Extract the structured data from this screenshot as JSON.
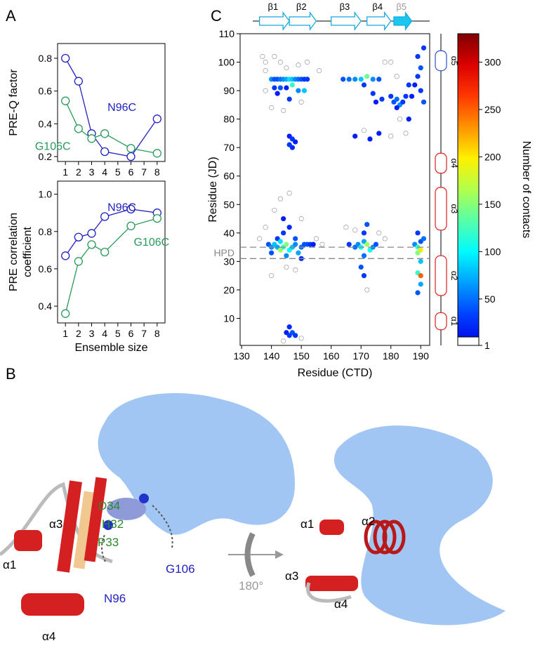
{
  "figure": {
    "panel_labels": [
      "A",
      "B",
      "C"
    ],
    "panel_b": {
      "left": [
        "D34",
        "H32",
        "P33",
        "α3",
        "α1",
        "N96",
        "G106",
        "α4"
      ],
      "rotation": "180°",
      "right": [
        "α2",
        "α1",
        "α3",
        "α4"
      ]
    }
  },
  "chart_data": [
    {
      "type": "line",
      "ylabel": [
        "PRE-Q factor"
      ],
      "x": [
        1,
        2,
        3,
        4,
        6,
        8
      ],
      "xlim": [
        0.4,
        8.6
      ],
      "xticks": [
        1,
        2,
        3,
        4,
        5,
        6,
        7,
        8
      ],
      "ylim": [
        0.17,
        0.89
      ],
      "yticks": [
        0.2,
        0.4,
        0.6,
        0.8
      ],
      "series": [
        {
          "name": "N96C",
          "color": "#2222c4",
          "values": [
            0.8,
            0.66,
            0.34,
            0.23,
            0.2,
            0.43
          ]
        },
        {
          "name": "G106C",
          "color": "#2a9a5a",
          "values": [
            0.54,
            0.37,
            0.31,
            0.34,
            0.25,
            0.22
          ]
        }
      ]
    },
    {
      "type": "line",
      "ylabel": [
        "PRE correlation",
        "coefficient"
      ],
      "xlabel": "Ensemble size",
      "x": [
        1,
        2,
        3,
        4,
        6,
        8
      ],
      "xlim": [
        0.4,
        8.6
      ],
      "xticks": [
        1,
        2,
        3,
        4,
        5,
        6,
        7,
        8
      ],
      "ylim": [
        0.31,
        1.07
      ],
      "yticks": [
        0.4,
        0.6,
        0.8,
        {
          "value": 1,
          "label": "1.0"
        }
      ],
      "series": [
        {
          "name": "N96C",
          "color": "#2222c4",
          "values": [
            0.67,
            0.77,
            0.79,
            0.88,
            0.92,
            0.9
          ]
        },
        {
          "name": "G106C",
          "color": "#2a9a5a",
          "values": [
            0.36,
            0.64,
            0.73,
            0.69,
            0.83,
            0.87
          ]
        }
      ]
    },
    {
      "type": "scatter",
      "xlabel": "Residue (CTD)",
      "ylabel": "Residue (JD)",
      "colorbar_label": "Number of contacts",
      "xlim": [
        129.5,
        193
      ],
      "xticks": [
        130,
        140,
        150,
        160,
        170,
        180,
        190
      ],
      "ylim": [
        0.5,
        110
      ],
      "yticks": [
        10,
        20,
        30,
        40,
        50,
        60,
        70,
        80,
        90,
        100,
        110
      ],
      "clim": [
        1,
        330
      ],
      "cticks": [
        1,
        50,
        100,
        150,
        200,
        250,
        300
      ],
      "hpd": {
        "label": "HPD",
        "lines": [
          31,
          35
        ]
      },
      "strands": [
        {
          "label": "β1",
          "start": 136,
          "end": 146
        },
        {
          "label": "β2",
          "start": 146,
          "end": 155
        },
        {
          "label": "β3",
          "start": 160,
          "end": 170
        },
        {
          "label": "β4",
          "start": 172,
          "end": 180
        },
        {
          "label": "β5",
          "start": 181,
          "end": 187
        }
      ],
      "helices": [
        {
          "label": "α1",
          "start": 6,
          "end": 12
        },
        {
          "label": "α2",
          "start": 18,
          "end": 32
        },
        {
          "label": "α3",
          "start": 41,
          "end": 56
        },
        {
          "label": "α4",
          "start": 61,
          "end": 68
        },
        {
          "label": "α5",
          "start": 97,
          "end": 104
        }
      ],
      "points": {
        "x": [
          140,
          141,
          142,
          143,
          144,
          145,
          146,
          147,
          148,
          149,
          150,
          151,
          152,
          141,
          143,
          145,
          147,
          149,
          151,
          142,
          146,
          146,
          147,
          148,
          147,
          146,
          139,
          140,
          141,
          142,
          143,
          144,
          145,
          146,
          147,
          148,
          149,
          150,
          151,
          152,
          153,
          154,
          142,
          144,
          146,
          144,
          148,
          140,
          145,
          150,
          143,
          145,
          146,
          147,
          148,
          146,
          166,
          168,
          169,
          170,
          171,
          172,
          173,
          174,
          175,
          171,
          172,
          171,
          170,
          171,
          164,
          166,
          168,
          170,
          172,
          174,
          176,
          171,
          174,
          175,
          177,
          173,
          168,
          176,
          180,
          181,
          182,
          183,
          184,
          182,
          185,
          186,
          187,
          186,
          188,
          189,
          190,
          189,
          190,
          189,
          190,
          190,
          189,
          190,
          189,
          191,
          190,
          189,
          191,
          190,
          191,
          189,
          188
        ],
        "y": [
          94,
          94,
          94,
          94,
          94,
          94,
          94,
          94,
          94,
          94,
          94,
          94,
          94,
          91,
          91,
          91,
          92,
          90,
          90,
          89,
          87,
          74,
          73,
          72,
          70,
          71,
          36,
          35,
          36,
          35,
          34,
          35,
          36,
          34,
          35,
          36,
          33,
          35,
          36,
          36,
          36,
          36,
          38,
          40,
          42,
          45,
          38,
          33,
          32,
          31,
          37,
          5,
          4,
          5,
          4,
          7,
          36,
          35,
          36,
          35,
          37,
          36,
          34,
          35,
          36,
          40,
          43,
          32,
          28,
          25,
          94,
          94,
          94,
          94,
          95,
          94,
          94,
          92,
          89,
          86,
          87,
          73,
          74,
          75,
          88,
          86,
          87,
          85,
          86,
          84,
          88,
          80,
          88,
          92,
          36,
          35,
          34,
          33,
          30,
          26,
          25,
          22,
          19,
          37,
          40,
          38,
          98,
          102,
          105,
          90,
          86,
          95,
          92
        ],
        "contacts": [
          60,
          40,
          40,
          50,
          60,
          70,
          90,
          80,
          60,
          50,
          40,
          30,
          30,
          30,
          40,
          20,
          120,
          60,
          80,
          20,
          30,
          20,
          30,
          20,
          25,
          30,
          40,
          60,
          80,
          70,
          160,
          120,
          150,
          100,
          80,
          60,
          70,
          50,
          40,
          40,
          30,
          20,
          30,
          30,
          25,
          20,
          40,
          40,
          60,
          25,
          90,
          20,
          30,
          40,
          30,
          25,
          30,
          50,
          60,
          100,
          70,
          160,
          110,
          60,
          40,
          30,
          40,
          50,
          40,
          30,
          40,
          50,
          60,
          80,
          140,
          60,
          40,
          30,
          30,
          20,
          30,
          20,
          20,
          20,
          30,
          40,
          50,
          60,
          30,
          20,
          30,
          20,
          20,
          30,
          60,
          120,
          200,
          150,
          80,
          120,
          250,
          70,
          40,
          40,
          30,
          50,
          40,
          30,
          30,
          30,
          40,
          30,
          20
        ]
      },
      "open_points": {
        "x": [
          137,
          138,
          138,
          141,
          143,
          145,
          149,
          152,
          156,
          140,
          138,
          144,
          150,
          143,
          141,
          146,
          150,
          138,
          136,
          155,
          157,
          145,
          148,
          165,
          168,
          176,
          178,
          178,
          180,
          182,
          183,
          171,
          180,
          185,
          144,
          150,
          140,
          172
        ],
        "y": [
          102,
          100,
          97,
          102,
          100,
          98,
          99,
          100,
          97,
          84,
          90,
          83,
          86,
          52,
          48,
          54,
          45,
          42,
          38,
          38,
          36,
          28,
          27,
          42,
          41,
          40,
          38,
          100,
          100,
          95,
          80,
          76,
          74,
          75,
          2,
          3,
          25,
          20
        ]
      }
    }
  ]
}
